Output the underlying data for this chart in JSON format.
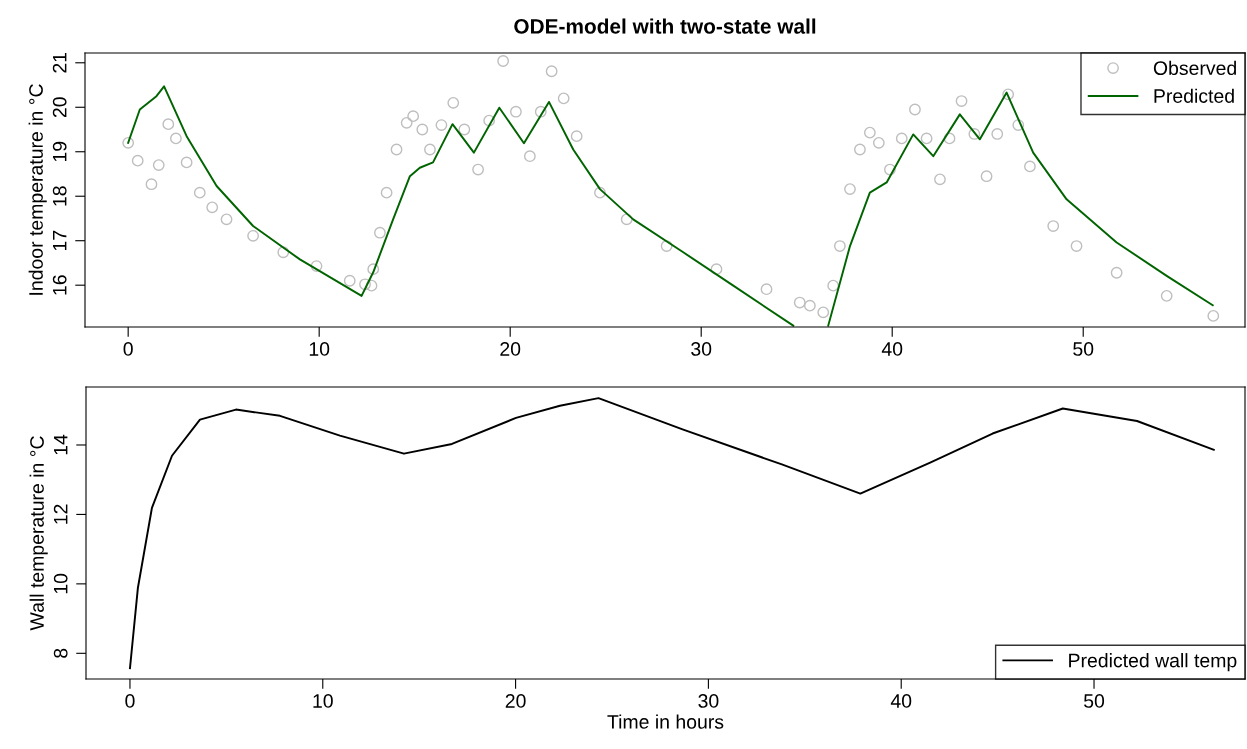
{
  "chart_data": [
    {
      "type": "line",
      "title": "ODE-model with two-state wall",
      "ylabel": "Indoor temperature in °C",
      "xlim": [
        -2.26,
        58.47
      ],
      "ylim": [
        15.06,
        21.22
      ],
      "xticks": [
        0,
        10,
        20,
        30,
        40,
        50
      ],
      "yticks": [
        16,
        17,
        18,
        19,
        20,
        21
      ],
      "grid": false,
      "legend": "top right",
      "series": [
        {
          "name": "Observed",
          "type": "scatter",
          "marker": "circle",
          "color": "#bebebe",
          "x": [
            0,
            0.5,
            1.22,
            1.6,
            2.1,
            2.5,
            3.06,
            3.75,
            4.4,
            5.15,
            6.54,
            8.12,
            9.86,
            11.6,
            12.4,
            12.74,
            12.83,
            13.18,
            13.53,
            14.05,
            14.58,
            14.92,
            15.4,
            15.8,
            16.4,
            17.02,
            17.6,
            18.32,
            18.9,
            19.63,
            20.3,
            21.03,
            21.6,
            22.17,
            22.8,
            23.48,
            24.7,
            26.1,
            28.19,
            30.8,
            33.42,
            35.16,
            35.69,
            36.39,
            36.91,
            37.26,
            37.79,
            38.31,
            38.83,
            39.3,
            39.88,
            40.5,
            41.19,
            41.8,
            42.5,
            43.0,
            43.63,
            44.3,
            44.94,
            45.5,
            46.07,
            46.6,
            47.21,
            48.43,
            49.65,
            51.75,
            54.37,
            56.81
          ],
          "values": [
            19.2,
            18.8,
            18.27,
            18.7,
            19.62,
            19.3,
            18.76,
            18.08,
            17.75,
            17.48,
            17.11,
            16.74,
            16.43,
            16.1,
            16.02,
            15.99,
            16.36,
            17.18,
            18.08,
            19.05,
            19.65,
            19.8,
            19.5,
            19.05,
            19.6,
            20.1,
            19.5,
            18.6,
            19.7,
            21.04,
            19.9,
            18.9,
            19.9,
            20.81,
            20.2,
            19.35,
            18.08,
            17.48,
            16.88,
            16.36,
            15.91,
            15.61,
            15.54,
            15.39,
            15.99,
            16.88,
            18.16,
            19.05,
            19.43,
            19.2,
            18.6,
            19.3,
            19.95,
            19.3,
            18.38,
            19.3,
            20.14,
            19.4,
            18.45,
            19.4,
            20.29,
            19.6,
            18.67,
            17.33,
            16.88,
            16.28,
            15.76,
            15.31
          ]
        },
        {
          "name": "Predicted",
          "color": "#006400",
          "x": [
            0,
            0.61,
            1.48,
            1.88,
            3.06,
            4.63,
            6.54,
            8.99,
            12.22,
            12.83,
            13.87,
            14.75,
            15.27,
            15.96,
            16.98,
            18.1,
            19.43,
            20.72,
            22.03,
            23.3,
            24.7,
            26.44,
            29.06,
            31.68,
            34.82,
            35.5,
            36.65,
            37.79,
            38.83,
            39.71,
            41.1,
            42.15,
            43.54,
            44.59,
            45.99,
            47.38,
            49.13,
            51.75,
            54.37,
            56.78
          ],
          "values": [
            19.2,
            19.95,
            20.25,
            20.47,
            19.35,
            18.23,
            17.33,
            16.58,
            15.76,
            16.29,
            17.48,
            18.45,
            18.64,
            18.76,
            19.62,
            18.98,
            19.99,
            19.19,
            20.12,
            19.05,
            18.16,
            17.48,
            16.74,
            15.99,
            15.09,
            null,
            15.09,
            16.88,
            18.08,
            18.31,
            19.39,
            18.9,
            19.84,
            19.28,
            20.33,
            18.98,
            17.93,
            16.96,
            16.21,
            15.55
          ]
        }
      ]
    },
    {
      "type": "line",
      "xlabel": "Time in hours",
      "ylabel": "Wall temperature in °C",
      "xlim": [
        -2.28,
        57.83
      ],
      "ylim": [
        7.26,
        15.67
      ],
      "xticks": [
        0,
        10,
        20,
        30,
        40,
        50
      ],
      "yticks": [
        8,
        10,
        12,
        14
      ],
      "grid": false,
      "legend": "bottom right",
      "series": [
        {
          "name": "Predicted wall temp",
          "color": "#000000",
          "x": [
            0,
            0.41,
            1.14,
            2.18,
            3.63,
            5.5,
            7.78,
            10.89,
            14.21,
            16.7,
            20.02,
            22.3,
            24.3,
            28.66,
            33.81,
            37.88,
            41.53,
            44.74,
            48.38,
            52.23,
            56.21
          ],
          "values": [
            7.57,
            9.88,
            12.19,
            13.69,
            14.73,
            15.02,
            14.84,
            14.27,
            13.75,
            14.03,
            14.78,
            15.13,
            15.35,
            14.45,
            13.44,
            12.6,
            13.5,
            14.33,
            15.05,
            14.69,
            13.86
          ]
        }
      ]
    }
  ]
}
